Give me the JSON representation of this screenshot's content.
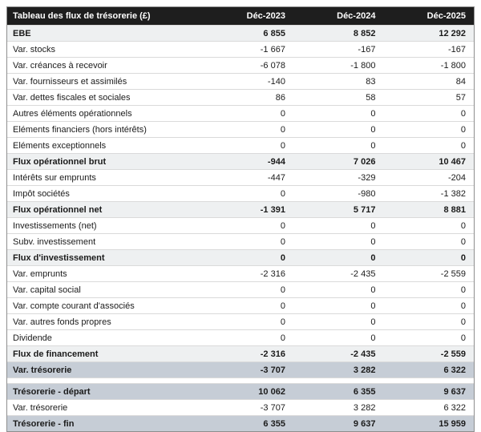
{
  "colors": {
    "header_bg": "#1e1e1e",
    "header_text": "#ffffff",
    "subtotal_row_bg": "#eef0f1",
    "highlight_row_bg": "#c6cdd6",
    "row_border": "#dadada",
    "outer_border": "#8e8e8e",
    "body_text": "#1b1b1b"
  },
  "table": {
    "title": "Tableau des flux de trésorerie (£)",
    "columns": [
      "Déc-2023",
      "Déc-2024",
      "Déc-2025"
    ],
    "rows": [
      {
        "label": "EBE",
        "values": [
          "6 855",
          "8 852",
          "12 292"
        ],
        "style": "subtotal"
      },
      {
        "label": "Var. stocks",
        "values": [
          "-1 667",
          "-167",
          "-167"
        ],
        "style": "normal"
      },
      {
        "label": "Var. créances à recevoir",
        "values": [
          "-6 078",
          "-1 800",
          "-1 800"
        ],
        "style": "normal"
      },
      {
        "label": "Var. fournisseurs et assimilés",
        "values": [
          "-140",
          "83",
          "84"
        ],
        "style": "normal"
      },
      {
        "label": "Var. dettes fiscales et sociales",
        "values": [
          "86",
          "58",
          "57"
        ],
        "style": "normal"
      },
      {
        "label": "Autres éléments opérationnels",
        "values": [
          "0",
          "0",
          "0"
        ],
        "style": "normal"
      },
      {
        "label": "Eléments financiers (hors intérêts)",
        "values": [
          "0",
          "0",
          "0"
        ],
        "style": "normal"
      },
      {
        "label": "Eléments exceptionnels",
        "values": [
          "0",
          "0",
          "0"
        ],
        "style": "normal"
      },
      {
        "label": "Flux opérationnel brut",
        "values": [
          "-944",
          "7 026",
          "10 467"
        ],
        "style": "subtotal"
      },
      {
        "label": "Intérêts sur emprunts",
        "values": [
          "-447",
          "-329",
          "-204"
        ],
        "style": "normal"
      },
      {
        "label": "Impôt sociétés",
        "values": [
          "0",
          "-980",
          "-1 382"
        ],
        "style": "normal"
      },
      {
        "label": "Flux opérationnel net",
        "values": [
          "-1 391",
          "5 717",
          "8 881"
        ],
        "style": "subtotal"
      },
      {
        "label": "Investissements (net)",
        "values": [
          "0",
          "0",
          "0"
        ],
        "style": "normal"
      },
      {
        "label": "Subv. investissement",
        "values": [
          "0",
          "0",
          "0"
        ],
        "style": "normal"
      },
      {
        "label": "Flux d'investissement",
        "values": [
          "0",
          "0",
          "0"
        ],
        "style": "subtotal"
      },
      {
        "label": "Var. emprunts",
        "values": [
          "-2 316",
          "-2 435",
          "-2 559"
        ],
        "style": "normal"
      },
      {
        "label": "Var. capital social",
        "values": [
          "0",
          "0",
          "0"
        ],
        "style": "normal"
      },
      {
        "label": "Var. compte courant d'associés",
        "values": [
          "0",
          "0",
          "0"
        ],
        "style": "normal"
      },
      {
        "label": "Var. autres fonds propres",
        "values": [
          "0",
          "0",
          "0"
        ],
        "style": "normal"
      },
      {
        "label": "Dividende",
        "values": [
          "0",
          "0",
          "0"
        ],
        "style": "normal"
      },
      {
        "label": "Flux de financement",
        "values": [
          "-2 316",
          "-2 435",
          "-2 559"
        ],
        "style": "subtotal"
      },
      {
        "label": "Var. trésorerie",
        "values": [
          "-3 707",
          "3 282",
          "6 322"
        ],
        "style": "highlight"
      },
      {
        "label": "",
        "values": [
          "",
          "",
          ""
        ],
        "style": "spacer"
      },
      {
        "label": "Trésorerie - départ",
        "values": [
          "10 062",
          "6 355",
          "9 637"
        ],
        "style": "highlight"
      },
      {
        "label": "Var. trésorerie",
        "values": [
          "-3 707",
          "3 282",
          "6 322"
        ],
        "style": "normal"
      },
      {
        "label": "Trésorerie - fin",
        "values": [
          "6 355",
          "9 637",
          "15 959"
        ],
        "style": "highlight"
      }
    ]
  },
  "chart_data": {
    "type": "table",
    "title": "Tableau des flux de trésorerie (£)",
    "categories": [
      "Déc-2023",
      "Déc-2024",
      "Déc-2025"
    ],
    "series": [
      {
        "name": "EBE",
        "values": [
          6855,
          8852,
          12292
        ]
      },
      {
        "name": "Var. stocks",
        "values": [
          -1667,
          -167,
          -167
        ]
      },
      {
        "name": "Var. créances à recevoir",
        "values": [
          -6078,
          -1800,
          -1800
        ]
      },
      {
        "name": "Var. fournisseurs et assimilés",
        "values": [
          -140,
          83,
          84
        ]
      },
      {
        "name": "Var. dettes fiscales et sociales",
        "values": [
          86,
          58,
          57
        ]
      },
      {
        "name": "Autres éléments opérationnels",
        "values": [
          0,
          0,
          0
        ]
      },
      {
        "name": "Eléments financiers (hors intérêts)",
        "values": [
          0,
          0,
          0
        ]
      },
      {
        "name": "Eléments exceptionnels",
        "values": [
          0,
          0,
          0
        ]
      },
      {
        "name": "Flux opérationnel brut",
        "values": [
          -944,
          7026,
          10467
        ]
      },
      {
        "name": "Intérêts sur emprunts",
        "values": [
          -447,
          -329,
          -204
        ]
      },
      {
        "name": "Impôt sociétés",
        "values": [
          0,
          -980,
          -1382
        ]
      },
      {
        "name": "Flux opérationnel net",
        "values": [
          -1391,
          5717,
          8881
        ]
      },
      {
        "name": "Investissements (net)",
        "values": [
          0,
          0,
          0
        ]
      },
      {
        "name": "Subv. investissement",
        "values": [
          0,
          0,
          0
        ]
      },
      {
        "name": "Flux d'investissement",
        "values": [
          0,
          0,
          0
        ]
      },
      {
        "name": "Var. emprunts",
        "values": [
          -2316,
          -2435,
          -2559
        ]
      },
      {
        "name": "Var. capital social",
        "values": [
          0,
          0,
          0
        ]
      },
      {
        "name": "Var. compte courant d'associés",
        "values": [
          0,
          0,
          0
        ]
      },
      {
        "name": "Var. autres fonds propres",
        "values": [
          0,
          0,
          0
        ]
      },
      {
        "name": "Dividende",
        "values": [
          0,
          0,
          0
        ]
      },
      {
        "name": "Flux de financement",
        "values": [
          -2316,
          -2435,
          -2559
        ]
      },
      {
        "name": "Var. trésorerie",
        "values": [
          -3707,
          3282,
          6322
        ]
      },
      {
        "name": "Trésorerie - départ",
        "values": [
          10062,
          6355,
          9637
        ]
      },
      {
        "name": "Var. trésorerie",
        "values": [
          -3707,
          3282,
          6322
        ]
      },
      {
        "name": "Trésorerie - fin",
        "values": [
          6355,
          9637,
          15959
        ]
      }
    ]
  }
}
